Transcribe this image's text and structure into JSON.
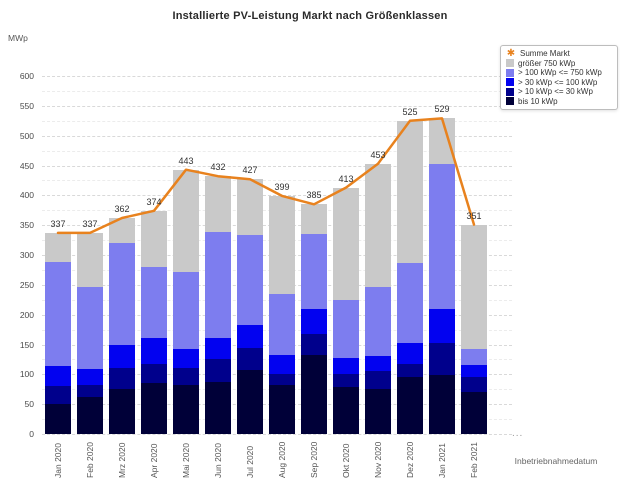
{
  "title": "Installierte PV-Leistung Markt nach Größenklassen",
  "y_axis": {
    "unit": "MWp",
    "min": 0,
    "max": 600,
    "tick_step": 50,
    "minor_step": 25
  },
  "x_axis": {
    "label": "Inbetriebnahmedatum"
  },
  "more_indicator": "...",
  "icons": {
    "summe_markt_marker": "✱"
  },
  "colors": {
    "line": "#e8821e",
    "bis_10": "#000038",
    "gt10_le30": "#00008c",
    "gt30_le100": "#0202f0",
    "gt100_le750": "#7d7def",
    "gt750": "#c9c9c9"
  },
  "chart_data": {
    "type": "bar",
    "stacked": true,
    "title": "Installierte PV-Leistung Markt nach Größenklassen",
    "xlabel": "Inbetriebnahmedatum",
    "ylabel": "MWp",
    "ylim": [
      0,
      600
    ],
    "grid": "horizontal dashed, major 50 / minor 25",
    "legend_position": "top-right",
    "categories": [
      "Jan 2020",
      "Feb 2020",
      "Mrz 2020",
      "Apr 2020",
      "Mai 2020",
      "Jun 2020",
      "Jul 2020",
      "Aug 2020",
      "Sep 2020",
      "Okt 2020",
      "Nov 2020",
      "Dez 2020",
      "Jan 2021",
      "Feb 2021"
    ],
    "series": [
      {
        "name": "bis 10 kWp",
        "color": "#000038",
        "values": [
          50,
          61,
          76,
          85,
          82,
          87,
          107,
          82,
          132,
          79,
          76,
          96,
          99,
          71
        ]
      },
      {
        "name": "> 10 kWp <= 30 kWp",
        "color": "#00008c",
        "values": [
          31,
          21,
          34,
          33,
          28,
          39,
          37,
          19,
          35,
          22,
          30,
          21,
          53,
          25
        ]
      },
      {
        "name": "> 30 kWp <= 100 kWp",
        "color": "#0202f0",
        "values": [
          32,
          26,
          39,
          42,
          33,
          35,
          39,
          31,
          43,
          27,
          24,
          35,
          58,
          19
        ]
      },
      {
        "name": "> 100 kWp <= 750 kWp",
        "color": "#7d7def",
        "values": [
          175,
          139,
          171,
          120,
          129,
          177,
          150,
          103,
          125,
          97,
          117,
          134,
          242,
          28
        ]
      },
      {
        "name": "größer 750 kWp",
        "color": "#c9c9c9",
        "values": [
          49,
          90,
          42,
          94,
          171,
          94,
          94,
          164,
          50,
          188,
          206,
          239,
          77,
          208
        ]
      }
    ],
    "line_series": {
      "name": "Summe Markt",
      "color": "#e8821e",
      "values": [
        337,
        337,
        362,
        374,
        443,
        432,
        427,
        399,
        385,
        413,
        453,
        525,
        529,
        351
      ]
    }
  }
}
